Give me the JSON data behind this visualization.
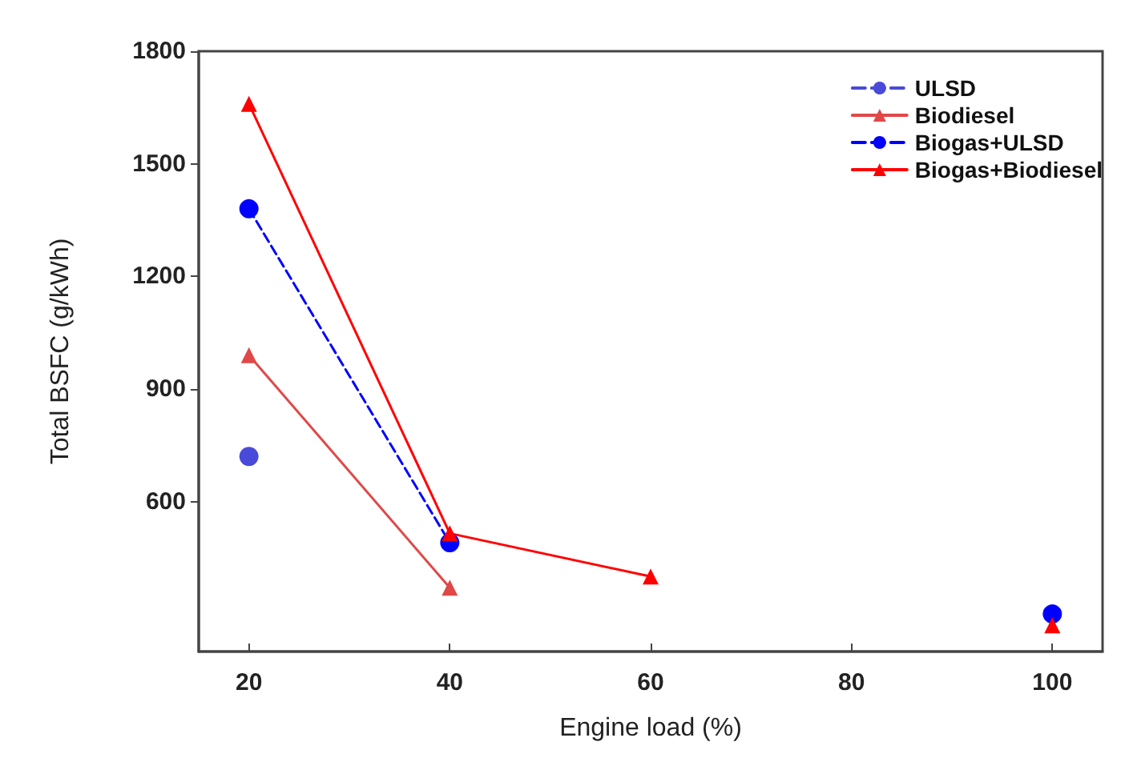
{
  "chart_data": {
    "type": "line",
    "xlabel": "Engine load (%)",
    "ylabel": "Total BSFC (g/kWh)",
    "x": [
      20,
      40,
      60,
      80,
      100
    ],
    "series": [
      {
        "name": "ULSD",
        "color": "#4a4ad8",
        "values": [
          720,
          null,
          null,
          null,
          null
        ],
        "marker": "circle",
        "line_style": "dashed"
      },
      {
        "name": "Biodiesel",
        "color": "#e04848",
        "values": [
          990,
          370,
          null,
          null,
          null
        ],
        "marker": "triangle",
        "line_style": "solid"
      },
      {
        "name": "Biogas+ULSD",
        "color": "#0000ff",
        "values": [
          1380,
          490,
          null,
          null,
          300
        ],
        "marker": "circle",
        "line_style": "dashed"
      },
      {
        "name": "Biogas+Biodiesel",
        "color": "#ff0000",
        "values": [
          1660,
          515,
          400,
          null,
          270
        ],
        "marker": "triangle",
        "line_style": "solid"
      }
    ],
    "xlim": [
      15,
      105
    ],
    "xticks": [
      20,
      40,
      60,
      80,
      100
    ],
    "ylim": [
      200,
      1800
    ],
    "yticks": [
      600,
      900,
      1200,
      1500,
      1800
    ],
    "grid": false,
    "legend": "top right"
  }
}
